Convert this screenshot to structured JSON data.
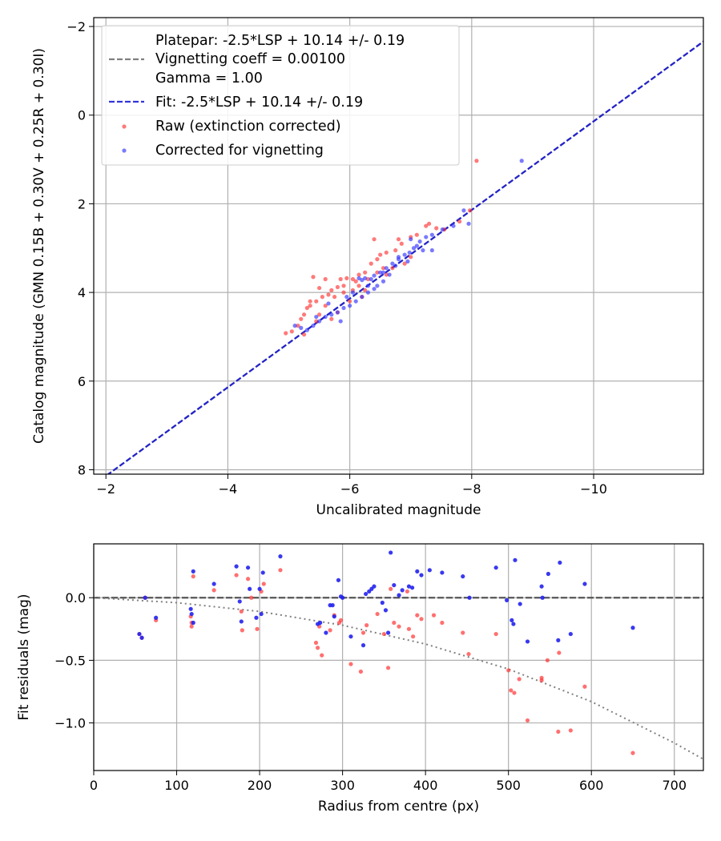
{
  "chart_data": [
    {
      "type": "scatter",
      "name": "calibration",
      "title": "",
      "xlabel": "Uncalibrated magnitude",
      "ylabel": "Catalog magnitude (GMN 0.15B + 0.30V + 0.25R + 0.30I)",
      "xlim": [
        -1.8,
        -11.8
      ],
      "ylim": [
        8.1,
        -2.2
      ],
      "x_inverted": true,
      "y_inverted": true,
      "xticks": [
        -2,
        -4,
        -6,
        -8,
        -10
      ],
      "xtick_labels": [
        "−2",
        "−4",
        "−6",
        "−8",
        "−10"
      ],
      "yticks": [
        -2,
        0,
        2,
        4,
        6,
        8
      ],
      "ytick_labels": [
        "−2",
        "0",
        "2",
        "4",
        "6",
        "8"
      ],
      "grid": true,
      "legend_position": "upper-left",
      "legend": [
        {
          "label": "Platepar: -2.5*LSP + 10.14 +/- 0.19",
          "color": "",
          "style": "none"
        },
        {
          "label": "Vignetting coeff = 0.00100",
          "color": "#808080",
          "style": "dashed-line"
        },
        {
          "label": "Gamma = 1.00",
          "color": "",
          "style": "none"
        },
        {
          "label": "Fit: -2.5*LSP + 10.14 +/- 0.19",
          "color": "#3333dd",
          "style": "dashed-line"
        },
        {
          "label": "Raw (extinction corrected)",
          "color": "#ff3333",
          "style": "marker"
        },
        {
          "label": "Corrected for vignetting",
          "color": "#3333ff",
          "style": "marker"
        }
      ],
      "lines": [
        {
          "name": "Platepar",
          "slope": 1,
          "intercept": 10.14,
          "color": "#808080"
        },
        {
          "name": "Fit",
          "slope": 1,
          "intercept": 10.14,
          "color": "#2222cc"
        }
      ],
      "series": [
        {
          "name": "Raw (extinction corrected)",
          "color": "#ff3333",
          "points": [
            [
              -8.08,
              1.03
            ],
            [
              -7.97,
              2.15
            ],
            [
              -7.8,
              2.4
            ],
            [
              -7.55,
              2.58
            ],
            [
              -7.42,
              2.55
            ],
            [
              -7.3,
              2.45
            ],
            [
              -7.25,
              2.5
            ],
            [
              -7.1,
              2.7
            ],
            [
              -7.0,
              2.75
            ],
            [
              -6.85,
              2.9
            ],
            [
              -6.75,
              3.05
            ],
            [
              -6.6,
              3.1
            ],
            [
              -6.5,
              3.15
            ],
            [
              -6.45,
              3.25
            ],
            [
              -6.35,
              3.35
            ],
            [
              -6.25,
              3.55
            ],
            [
              -6.15,
              3.6
            ],
            [
              -6.05,
              3.7
            ],
            [
              -5.95,
              3.68
            ],
            [
              -5.85,
              3.7
            ],
            [
              -5.8,
              3.88
            ],
            [
              -5.7,
              3.95
            ],
            [
              -5.65,
              4.05
            ],
            [
              -5.55,
              4.1
            ],
            [
              -5.45,
              4.2
            ],
            [
              -5.35,
              4.3
            ],
            [
              -5.3,
              4.35
            ],
            [
              -5.25,
              4.5
            ],
            [
              -5.15,
              4.75
            ],
            [
              -5.05,
              4.88
            ],
            [
              -4.95,
              4.92
            ],
            [
              -6.4,
              2.8
            ],
            [
              -6.8,
              2.8
            ],
            [
              -7.0,
              3.2
            ],
            [
              -6.9,
              3.35
            ],
            [
              -6.55,
              3.45
            ],
            [
              -6.3,
              3.7
            ],
            [
              -6.1,
              3.75
            ],
            [
              -5.9,
              3.85
            ],
            [
              -5.6,
              3.7
            ],
            [
              -5.4,
              3.65
            ],
            [
              -5.5,
              3.9
            ],
            [
              -5.35,
              4.2
            ],
            [
              -5.6,
              4.3
            ],
            [
              -5.8,
              4.45
            ],
            [
              -5.7,
              4.6
            ],
            [
              -5.45,
              4.65
            ],
            [
              -5.2,
              4.6
            ],
            [
              -6.2,
              4.1
            ],
            [
              -6.0,
              4.2
            ],
            [
              -6.25,
              3.95
            ],
            [
              -6.6,
              3.6
            ],
            [
              -6.7,
              3.45
            ],
            [
              -6.05,
              3.95
            ],
            [
              -5.9,
              4.0
            ],
            [
              -5.5,
              4.5
            ],
            [
              -5.25,
              4.95
            ],
            [
              -6.15,
              3.85
            ],
            [
              -6.45,
              3.55
            ],
            [
              -5.75,
              4.1
            ]
          ]
        },
        {
          "name": "Corrected for vignetting",
          "color": "#3333ff",
          "points": [
            [
              -8.82,
              1.03
            ],
            [
              -7.95,
              2.45
            ],
            [
              -7.87,
              2.15
            ],
            [
              -7.7,
              2.5
            ],
            [
              -7.52,
              2.58
            ],
            [
              -7.35,
              2.7
            ],
            [
              -7.25,
              2.75
            ],
            [
              -7.15,
              2.85
            ],
            [
              -7.1,
              2.95
            ],
            [
              -7.05,
              3.0
            ],
            [
              -6.98,
              3.1
            ],
            [
              -6.9,
              3.15
            ],
            [
              -6.8,
              3.25
            ],
            [
              -6.7,
              3.35
            ],
            [
              -6.6,
              3.45
            ],
            [
              -6.5,
              3.55
            ],
            [
              -6.4,
              3.62
            ],
            [
              -6.35,
              3.7
            ],
            [
              -6.25,
              3.68
            ],
            [
              -6.2,
              3.72
            ],
            [
              -6.15,
              3.68
            ],
            [
              -6.45,
              3.85
            ],
            [
              -6.4,
              3.92
            ],
            [
              -6.3,
              4.0
            ],
            [
              -6.2,
              4.1
            ],
            [
              -6.1,
              4.2
            ],
            [
              -6.0,
              4.3
            ],
            [
              -5.9,
              4.35
            ],
            [
              -5.8,
              4.45
            ],
            [
              -5.7,
              4.5
            ],
            [
              -5.6,
              4.55
            ],
            [
              -5.5,
              4.65
            ],
            [
              -5.4,
              4.75
            ],
            [
              -5.3,
              4.85
            ],
            [
              -5.2,
              4.8
            ],
            [
              -5.1,
              4.75
            ],
            [
              -5.85,
              4.65
            ],
            [
              -7.35,
              3.05
            ],
            [
              -7.2,
              3.05
            ],
            [
              -6.95,
              3.3
            ],
            [
              -6.75,
              3.4
            ],
            [
              -6.65,
              3.6
            ],
            [
              -6.55,
              3.75
            ],
            [
              -6.3,
              3.85
            ],
            [
              -5.95,
              4.1
            ],
            [
              -6.05,
              4.0
            ],
            [
              -5.65,
              4.25
            ],
            [
              -5.45,
              4.55
            ],
            [
              -6.55,
              3.55
            ],
            [
              -6.8,
              3.2
            ],
            [
              -7.0,
              2.8
            ]
          ]
        }
      ]
    },
    {
      "type": "scatter",
      "name": "residuals",
      "title": "",
      "xlabel": "Radius from centre (px)",
      "ylabel": "Fit residuals (mag)",
      "xlim": [
        0,
        735
      ],
      "ylim": [
        -1.38,
        0.43
      ],
      "xticks": [
        0,
        100,
        200,
        300,
        400,
        500,
        600,
        700
      ],
      "xtick_labels": [
        "0",
        "100",
        "200",
        "300",
        "400",
        "500",
        "600",
        "700"
      ],
      "yticks": [
        0.0,
        -0.5,
        -1.0
      ],
      "ytick_labels": [
        "0.0",
        "−0.5",
        "−1.0"
      ],
      "grid": true,
      "lines": [
        {
          "name": "Zero residual",
          "y": 0.0,
          "color": "#555555",
          "style": "dashed"
        },
        {
          "name": "Vignetting curve",
          "style": "dotted",
          "color": "#808080",
          "points": [
            [
              0,
              0.0
            ],
            [
              100,
              -0.04
            ],
            [
              200,
              -0.11
            ],
            [
              300,
              -0.22
            ],
            [
              400,
              -0.37
            ],
            [
              500,
              -0.57
            ],
            [
              600,
              -0.83
            ],
            [
              700,
              -1.16
            ],
            [
              735,
              -1.29
            ]
          ]
        }
      ],
      "series": [
        {
          "name": "Raw (extinction corrected)",
          "color": "#ff3333",
          "points": [
            [
              55,
              -0.29
            ],
            [
              58,
              -0.32
            ],
            [
              62,
              0.0
            ],
            [
              75,
              -0.18
            ],
            [
              117,
              -0.15
            ],
            [
              118,
              -0.2
            ],
            [
              118,
              -0.23
            ],
            [
              120,
              0.17
            ],
            [
              145,
              0.06
            ],
            [
              172,
              0.18
            ],
            [
              178,
              -0.11
            ],
            [
              179,
              -0.26
            ],
            [
              186,
              0.15
            ],
            [
              190,
              0.0
            ],
            [
              197,
              -0.25
            ],
            [
              202,
              0.05
            ],
            [
              205,
              0.11
            ],
            [
              225,
              0.22
            ],
            [
              268,
              -0.36
            ],
            [
              270,
              -0.4
            ],
            [
              272,
              -0.23
            ],
            [
              275,
              -0.46
            ],
            [
              285,
              -0.26
            ],
            [
              290,
              -0.14
            ],
            [
              296,
              -0.2
            ],
            [
              298,
              -0.18
            ],
            [
              310,
              -0.53
            ],
            [
              322,
              -0.59
            ],
            [
              325,
              -0.28
            ],
            [
              329,
              -0.22
            ],
            [
              342,
              -0.13
            ],
            [
              350,
              -0.29
            ],
            [
              355,
              -0.56
            ],
            [
              358,
              0.07
            ],
            [
              362,
              -0.2
            ],
            [
              368,
              -0.23
            ],
            [
              378,
              0.05
            ],
            [
              380,
              -0.25
            ],
            [
              385,
              -0.31
            ],
            [
              390,
              -0.14
            ],
            [
              395,
              -0.17
            ],
            [
              410,
              -0.14
            ],
            [
              420,
              -0.2
            ],
            [
              445,
              -0.28
            ],
            [
              452,
              -0.45
            ],
            [
              485,
              -0.29
            ],
            [
              500,
              -0.58
            ],
            [
              503,
              -0.74
            ],
            [
              507,
              -0.76
            ],
            [
              513,
              -0.65
            ],
            [
              523,
              -0.98
            ],
            [
              540,
              -0.64
            ],
            [
              540,
              -0.66
            ],
            [
              547,
              -0.5
            ],
            [
              560,
              -1.07
            ],
            [
              561,
              -0.44
            ],
            [
              575,
              -1.06
            ],
            [
              592,
              -0.71
            ],
            [
              650,
              -1.24
            ]
          ]
        },
        {
          "name": "Corrected for vignetting",
          "color": "#2222ee",
          "points": [
            [
              55,
              -0.29
            ],
            [
              58,
              -0.32
            ],
            [
              62,
              0.0
            ],
            [
              75,
              -0.16
            ],
            [
              117,
              -0.09
            ],
            [
              118,
              -0.13
            ],
            [
              120,
              -0.2
            ],
            [
              120,
              0.21
            ],
            [
              145,
              0.11
            ],
            [
              172,
              0.25
            ],
            [
              176,
              -0.03
            ],
            [
              178,
              -0.19
            ],
            [
              186,
              0.24
            ],
            [
              188,
              0.07
            ],
            [
              196,
              -0.16
            ],
            [
              200,
              0.07
            ],
            [
              202,
              -0.13
            ],
            [
              204,
              0.2
            ],
            [
              225,
              0.33
            ],
            [
              270,
              -0.21
            ],
            [
              273,
              -0.2
            ],
            [
              280,
              -0.28
            ],
            [
              285,
              -0.06
            ],
            [
              288,
              -0.06
            ],
            [
              290,
              -0.15
            ],
            [
              295,
              0.14
            ],
            [
              298,
              0.01
            ],
            [
              300,
              0.0
            ],
            [
              310,
              -0.31
            ],
            [
              325,
              -0.38
            ],
            [
              328,
              0.03
            ],
            [
              332,
              0.05
            ],
            [
              335,
              0.07
            ],
            [
              338,
              0.09
            ],
            [
              348,
              -0.04
            ],
            [
              352,
              -0.1
            ],
            [
              355,
              -0.28
            ],
            [
              358,
              0.36
            ],
            [
              362,
              0.1
            ],
            [
              368,
              0.02
            ],
            [
              372,
              0.06
            ],
            [
              380,
              0.09
            ],
            [
              384,
              0.08
            ],
            [
              390,
              0.21
            ],
            [
              395,
              0.18
            ],
            [
              405,
              0.22
            ],
            [
              420,
              0.2
            ],
            [
              445,
              0.17
            ],
            [
              453,
              0.0
            ],
            [
              485,
              0.24
            ],
            [
              498,
              -0.02
            ],
            [
              504,
              -0.18
            ],
            [
              506,
              -0.21
            ],
            [
              508,
              0.3
            ],
            [
              514,
              -0.05
            ],
            [
              523,
              -0.35
            ],
            [
              540,
              0.09
            ],
            [
              541,
              0.0
            ],
            [
              548,
              0.19
            ],
            [
              560,
              -0.34
            ],
            [
              562,
              0.28
            ],
            [
              575,
              -0.29
            ],
            [
              592,
              0.11
            ],
            [
              650,
              -0.24
            ]
          ]
        }
      ]
    }
  ]
}
